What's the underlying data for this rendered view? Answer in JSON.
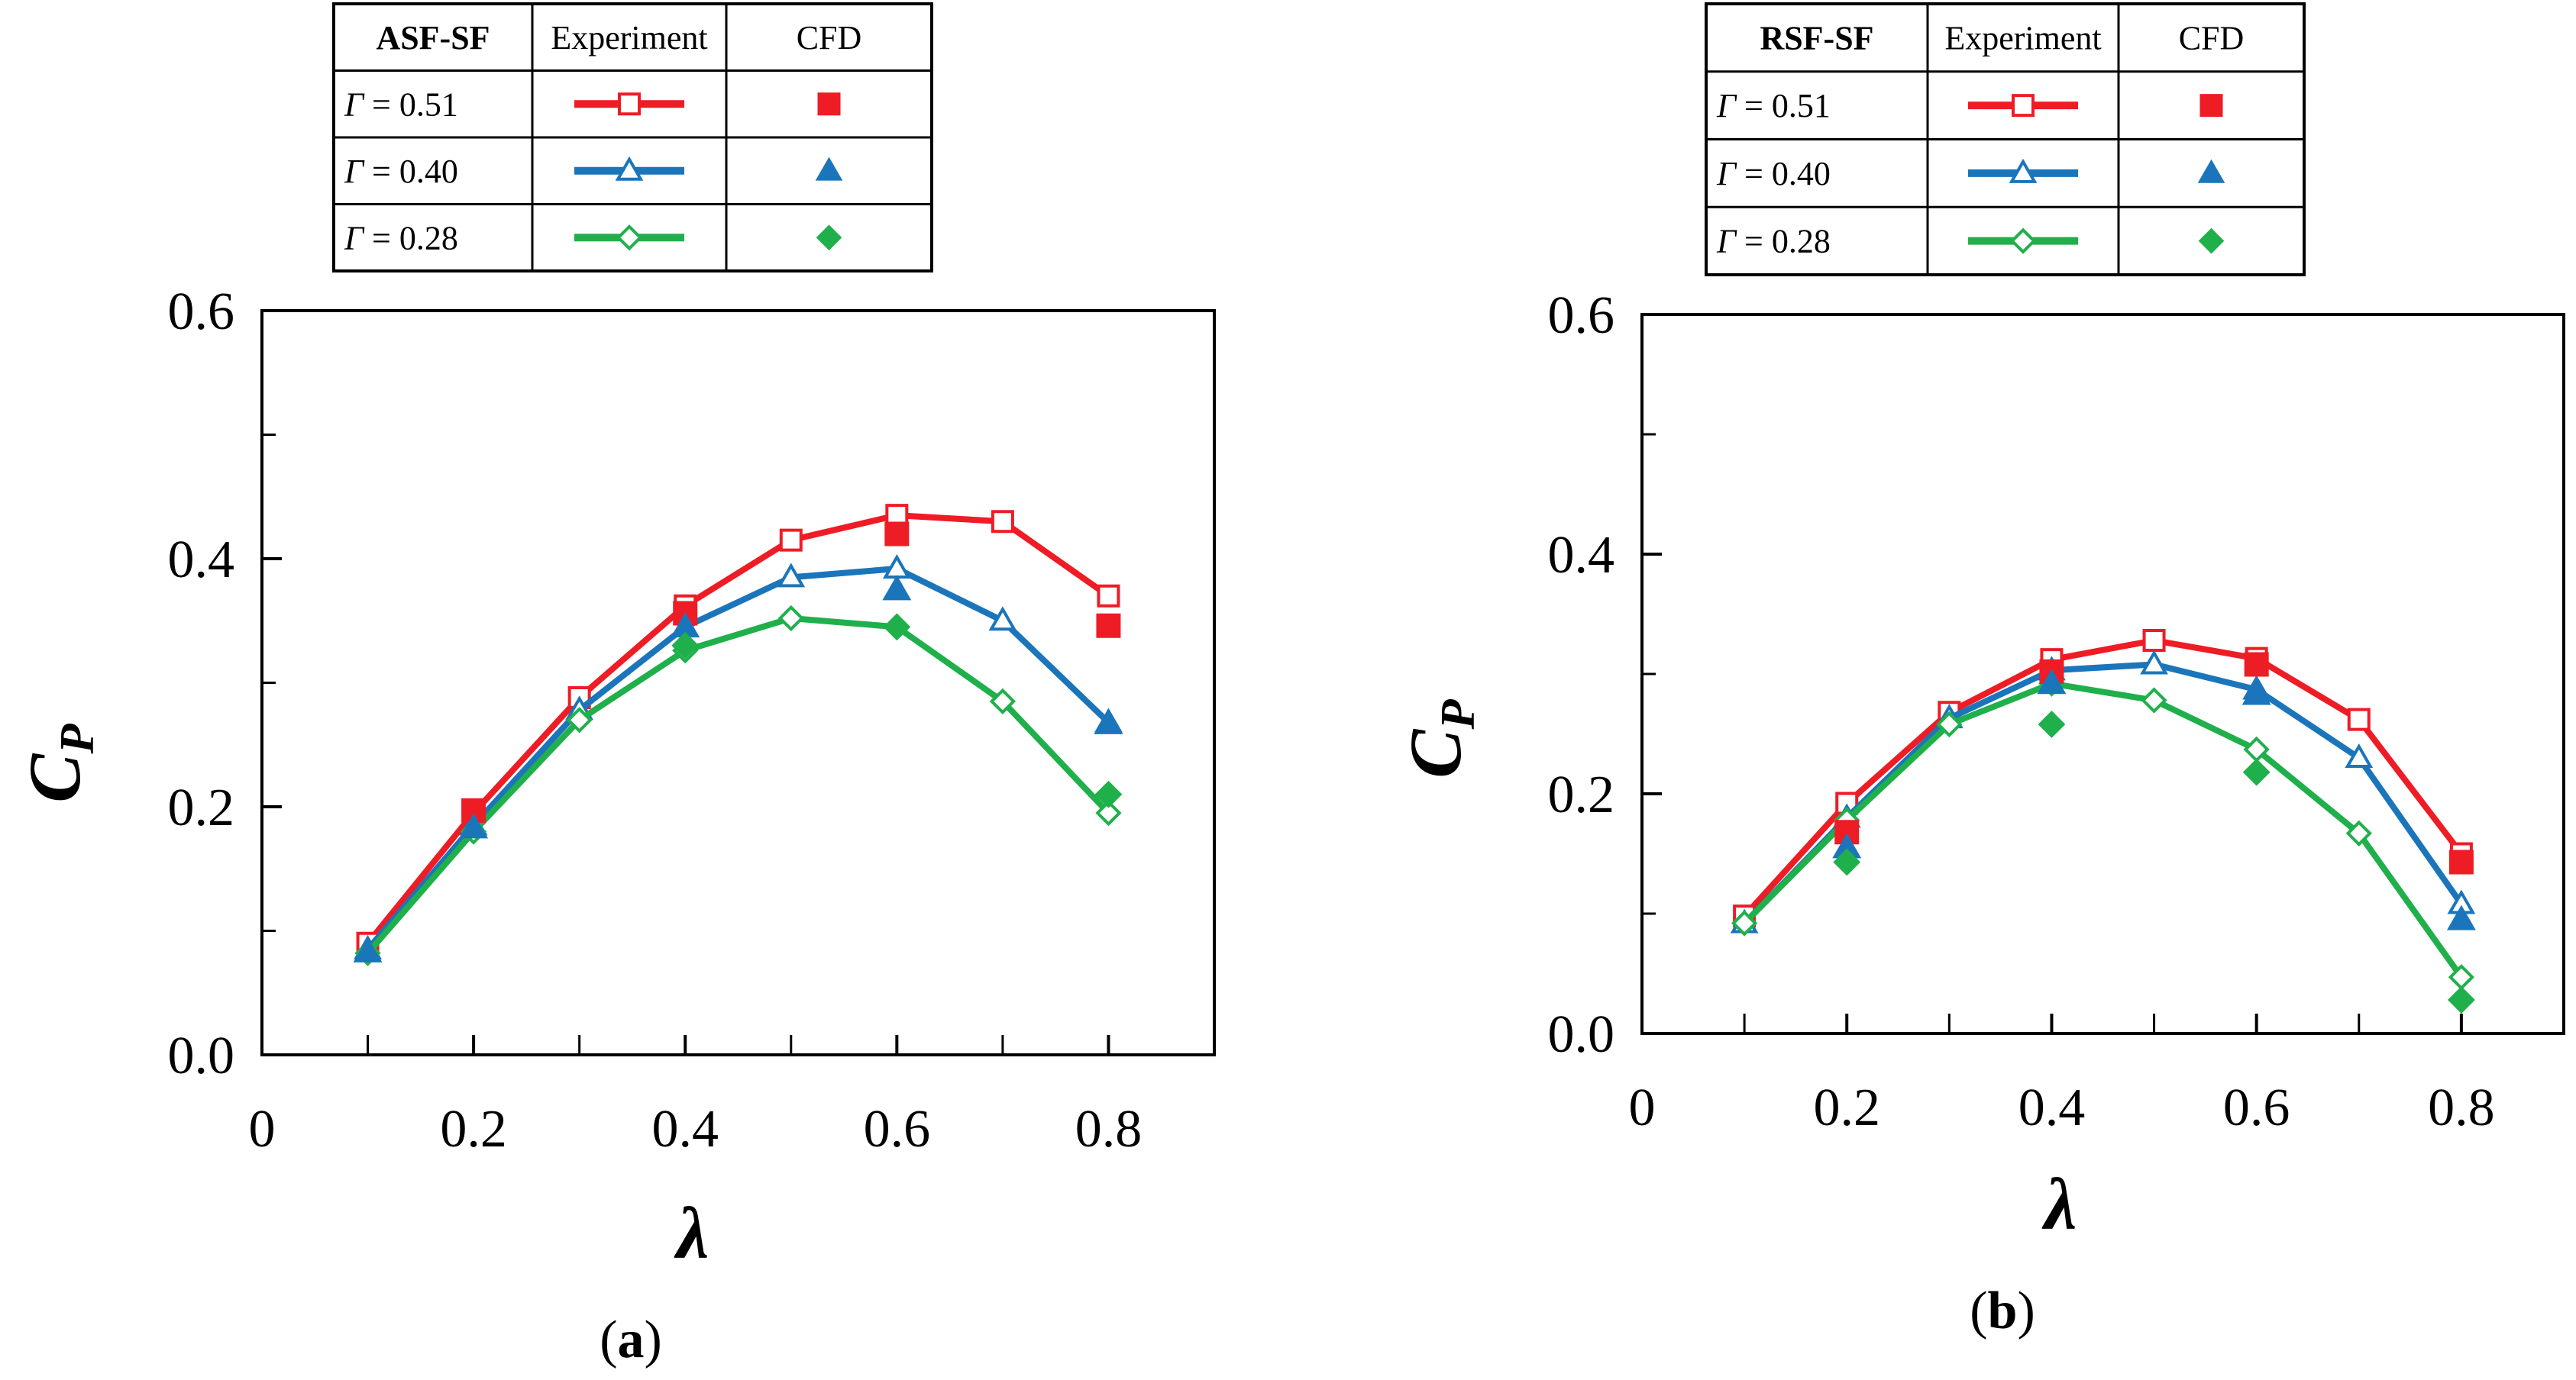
{
  "figure_labels": [
    "(a)",
    "(b)"
  ],
  "legend_headers": [
    "Experiment",
    "CFD"
  ],
  "series_styles": [
    {
      "color": "#ee1c25",
      "marker": "square"
    },
    {
      "color": "#1b75bb",
      "marker": "triangle"
    },
    {
      "color": "#20b04b",
      "marker": "diamond"
    }
  ],
  "chart_data": [
    {
      "type": "line",
      "panel_label": "a",
      "legend_title": "ASF-SF",
      "xlabel": "λ",
      "ylabel": "C",
      "ylabel_subscript": "P",
      "xlim": [
        0,
        0.9
      ],
      "ylim": [
        0,
        0.6
      ],
      "xticks": [
        0,
        0.2,
        0.4,
        0.6,
        0.8
      ],
      "xtick_labels": [
        "0",
        "0.2",
        "0.4",
        "0.6",
        "0.8"
      ],
      "yticks": [
        0,
        0.2,
        0.4,
        0.6
      ],
      "ytick_labels": [
        "0.0",
        "0.2",
        "0.4",
        "0.6"
      ],
      "minor_ticks_x": [
        0.1,
        0.3,
        0.5,
        0.7
      ],
      "minor_ticks_y": [
        0.1,
        0.3,
        0.5
      ],
      "series": [
        {
          "name": "Γ = 0.51",
          "gamma_label": "Γ",
          "gamma_value": "= 0.51",
          "experiment": {
            "x": [
              0.1,
              0.2,
              0.3,
              0.4,
              0.5,
              0.6,
              0.7,
              0.8
            ],
            "y": [
              0.09,
              0.195,
              0.288,
              0.362,
              0.415,
              0.435,
              0.43,
              0.37
            ]
          },
          "cfd": {
            "x": [
              0.2,
              0.4,
              0.6,
              0.8
            ],
            "y": [
              0.197,
              0.356,
              0.42,
              0.346
            ]
          }
        },
        {
          "name": "Γ = 0.40",
          "gamma_label": "Γ",
          "gamma_value": "= 0.40",
          "experiment": {
            "x": [
              0.1,
              0.2,
              0.3,
              0.4,
              0.5,
              0.6,
              0.7,
              0.8
            ],
            "y": [
              0.085,
              0.185,
              0.278,
              0.345,
              0.385,
              0.392,
              0.35,
              0.268
            ]
          },
          "cfd": {
            "x": [
              0.1,
              0.2,
              0.4,
              0.6,
              0.8
            ],
            "y": [
              0.083,
              0.183,
              0.345,
              0.375,
              0.267
            ]
          }
        },
        {
          "name": "Γ = 0.28",
          "gamma_label": "Γ",
          "gamma_value": "= 0.28",
          "experiment": {
            "x": [
              0.1,
              0.2,
              0.3,
              0.4,
              0.5,
              0.6,
              0.7,
              0.8
            ],
            "y": [
              0.082,
              0.18,
              0.27,
              0.326,
              0.352,
              0.345,
              0.285,
              0.195
            ]
          },
          "cfd": {
            "x": [
              0.4,
              0.6,
              0.8
            ],
            "y": [
              0.33,
              0.345,
              0.21
            ]
          }
        }
      ]
    },
    {
      "type": "line",
      "panel_label": "b",
      "legend_title": "RSF-SF",
      "xlabel": "λ",
      "ylabel": "C",
      "ylabel_subscript": "P",
      "xlim": [
        0,
        0.9
      ],
      "ylim": [
        0,
        0.6
      ],
      "xticks": [
        0,
        0.2,
        0.4,
        0.6,
        0.8
      ],
      "xtick_labels": [
        "0",
        "0.2",
        "0.4",
        "0.6",
        "0.8"
      ],
      "yticks": [
        0,
        0.2,
        0.4,
        0.6
      ],
      "ytick_labels": [
        "0.0",
        "0.2",
        "0.4",
        "0.6"
      ],
      "minor_ticks_x": [
        0.1,
        0.3,
        0.5,
        0.7
      ],
      "minor_ticks_y": [
        0.1,
        0.3,
        0.5
      ],
      "series": [
        {
          "name": "Γ = 0.51",
          "gamma_label": "Γ",
          "gamma_value": "= 0.51",
          "experiment": {
            "x": [
              0.1,
              0.2,
              0.3,
              0.4,
              0.5,
              0.6,
              0.7,
              0.8
            ],
            "y": [
              0.098,
              0.192,
              0.268,
              0.312,
              0.328,
              0.313,
              0.262,
              0.15
            ]
          },
          "cfd": {
            "x": [
              0.2,
              0.4,
              0.6,
              0.8
            ],
            "y": [
              0.168,
              0.302,
              0.308,
              0.143
            ]
          }
        },
        {
          "name": "Γ = 0.40",
          "gamma_label": "Γ",
          "gamma_value": "= 0.40",
          "experiment": {
            "x": [
              0.1,
              0.2,
              0.3,
              0.4,
              0.5,
              0.6,
              0.7,
              0.8
            ],
            "y": [
              0.092,
              0.18,
              0.263,
              0.303,
              0.308,
              0.287,
              0.23,
              0.108
            ]
          },
          "cfd": {
            "x": [
              0.2,
              0.4,
              0.6,
              0.8
            ],
            "y": [
              0.155,
              0.292,
              0.283,
              0.095
            ]
          }
        },
        {
          "name": "Γ = 0.28",
          "gamma_label": "Γ",
          "gamma_value": "= 0.28",
          "experiment": {
            "x": [
              0.1,
              0.2,
              0.3,
              0.4,
              0.5,
              0.6,
              0.7,
              0.8
            ],
            "y": [
              0.092,
              0.178,
              0.258,
              0.292,
              0.278,
              0.237,
              0.167,
              0.047
            ]
          },
          "cfd": {
            "x": [
              0.2,
              0.4,
              0.6,
              0.8
            ],
            "y": [
              0.143,
              0.258,
              0.218,
              0.028
            ]
          }
        }
      ]
    }
  ]
}
